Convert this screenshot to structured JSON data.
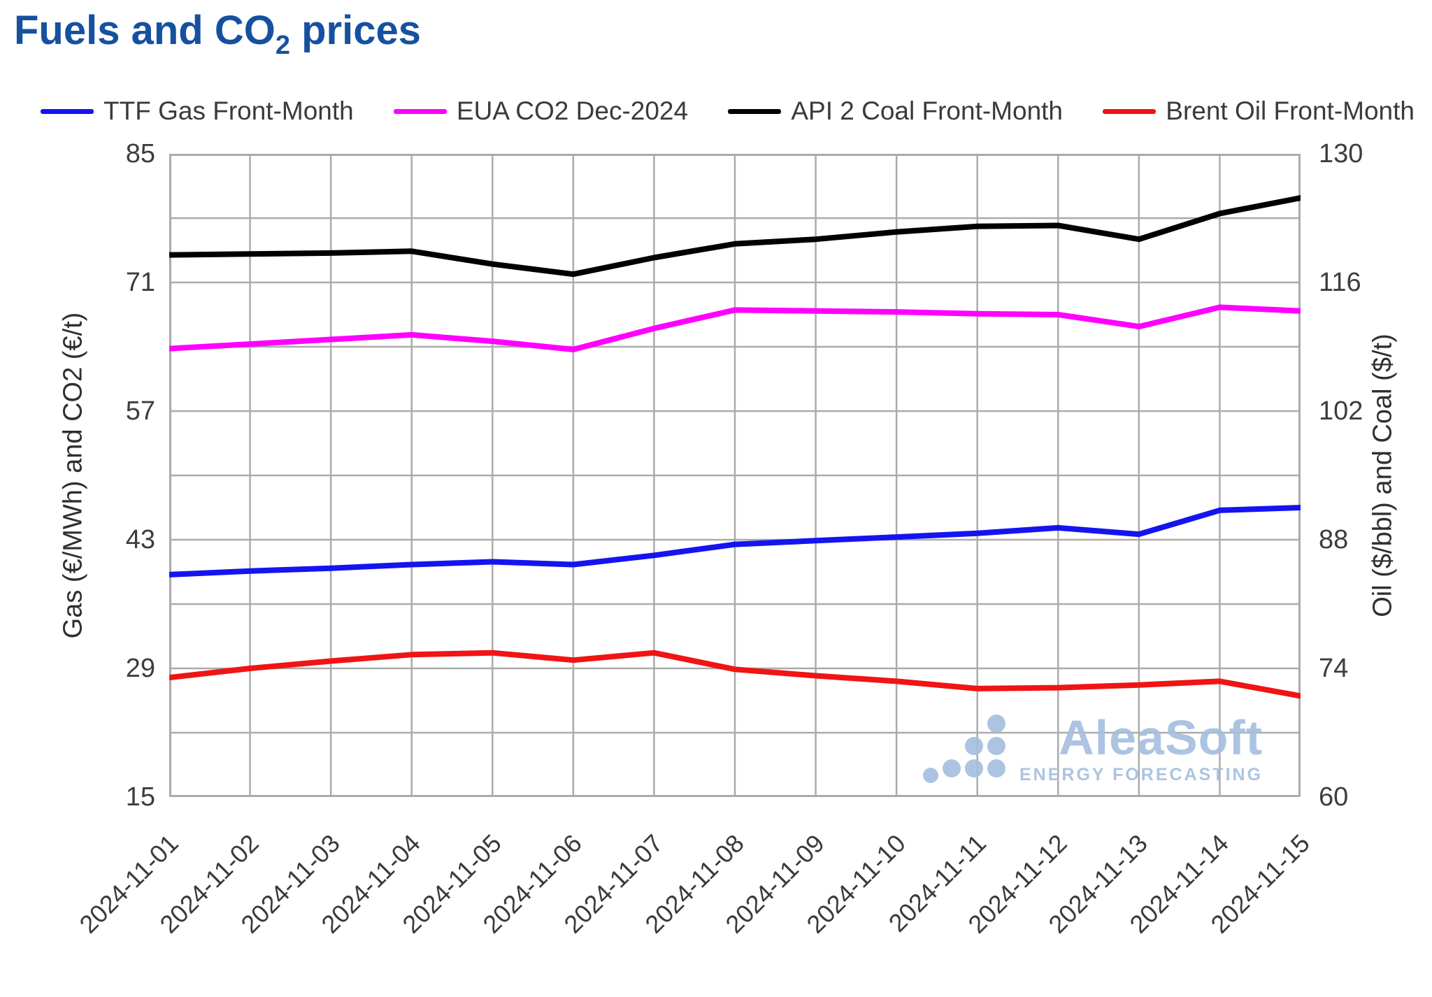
{
  "title": {
    "prefix": "Fuels and CO",
    "subscript": "2",
    "suffix": " prices"
  },
  "watermark": {
    "brand": "AleaSoft",
    "tagline": "ENERGY FORECASTING",
    "color": "#a5bfdf"
  },
  "colors": {
    "title": "#15519f",
    "grid": "#ababab",
    "tick_text": "#3d3d3d"
  },
  "chart_data": {
    "type": "line",
    "x": [
      "2024-11-01",
      "2024-11-02",
      "2024-11-03",
      "2024-11-04",
      "2024-11-05",
      "2024-11-06",
      "2024-11-07",
      "2024-11-08",
      "2024-11-09",
      "2024-11-10",
      "2024-11-11",
      "2024-11-12",
      "2024-11-13",
      "2024-11-14",
      "2024-11-15"
    ],
    "series": [
      {
        "name": "TTF Gas Front-Month",
        "axis": "left",
        "color": "#1414f0",
        "values": [
          39.2,
          39.6,
          39.9,
          40.3,
          40.6,
          40.3,
          41.3,
          42.5,
          42.9,
          43.3,
          43.7,
          44.3,
          43.6,
          46.2,
          46.5
        ]
      },
      {
        "name": "EUA CO2 Dec-2024",
        "axis": "left",
        "color": "#ff00ff",
        "values": [
          63.8,
          64.3,
          64.8,
          65.3,
          64.6,
          63.7,
          66.0,
          68.0,
          67.9,
          67.8,
          67.6,
          67.5,
          66.2,
          68.3,
          67.9
        ]
      },
      {
        "name": "API 2 Coal Front-Month",
        "axis": "right",
        "color": "#000000",
        "values": [
          119.0,
          119.1,
          119.2,
          119.4,
          118.0,
          116.9,
          118.7,
          120.2,
          120.7,
          121.5,
          122.1,
          122.2,
          120.7,
          123.5,
          125.2
        ]
      },
      {
        "name": "Brent Oil Front-Month",
        "axis": "right",
        "color": "#f01414",
        "values": [
          73.0,
          74.0,
          74.8,
          75.5,
          75.7,
          74.9,
          75.7,
          73.9,
          73.2,
          72.6,
          71.8,
          71.9,
          72.2,
          72.6,
          71.0
        ]
      }
    ],
    "left_axis": {
      "label": "Gas (€/MWh) and CO2 (€/t)",
      "min": 15,
      "max": 85,
      "ticks": [
        85,
        71,
        57,
        43,
        29,
        15
      ],
      "grid_step": 7
    },
    "right_axis": {
      "label": "Oil ($/bbl) and Coal ($/t)",
      "min": 60,
      "max": 130,
      "ticks": [
        130,
        116,
        102,
        88,
        74,
        60
      ]
    },
    "grid": true,
    "legend_position": "top"
  }
}
